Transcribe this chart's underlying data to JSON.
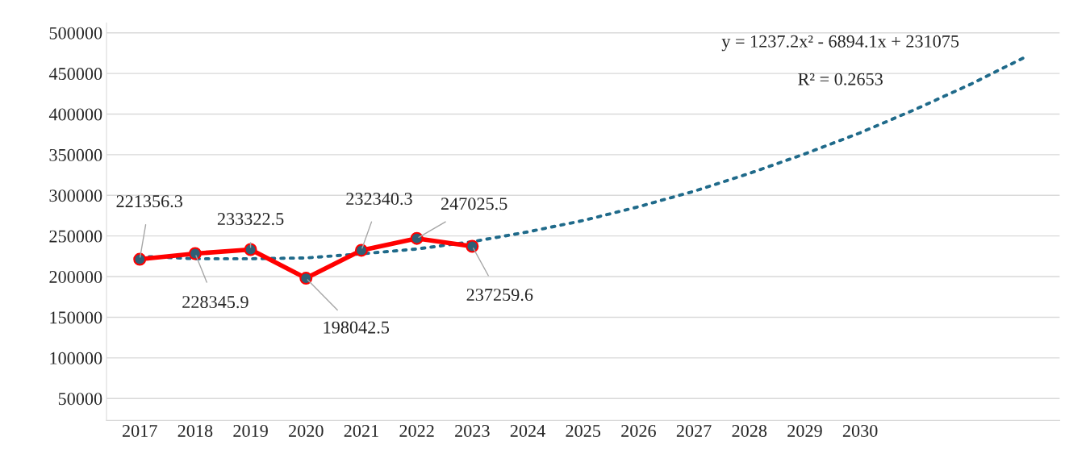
{
  "chart_data": {
    "type": "line",
    "categories": [
      "2017",
      "2018",
      "2019",
      "2020",
      "2021",
      "2022",
      "2023",
      "2024",
      "2025",
      "2026",
      "2027",
      "2028",
      "2029",
      "2030",
      null,
      null,
      null
    ],
    "series": [
      {
        "type": "line",
        "color": "#ff0000",
        "marker": "circle",
        "line_style": "solid",
        "data_labels": true,
        "values": [
          221356.3,
          228345.9,
          233322.5,
          198042.5,
          232340.3,
          247025.5,
          237259.6,
          null,
          null,
          null,
          null,
          null,
          null,
          null,
          null,
          null,
          null
        ]
      },
      {
        "type": "line",
        "color": "#1f6a8a",
        "marker": "none",
        "line_style": "dotted",
        "values": [
          225000,
          222000,
          222000,
          223000,
          228000,
          234000,
          243000,
          255000,
          269000,
          286000,
          305000,
          327000,
          351000,
          377000,
          406000,
          437000,
          471000
        ]
      }
    ],
    "annotations": [
      "y = 1237.2x² - 6894.1x + 231075",
      "R² = 0.2653"
    ],
    "ylim": [
      23000,
      512000
    ],
    "yticks": [
      50000,
      100000,
      150000,
      200000,
      250000,
      300000,
      350000,
      400000,
      450000,
      500000
    ],
    "grid": "y",
    "legend": false
  }
}
